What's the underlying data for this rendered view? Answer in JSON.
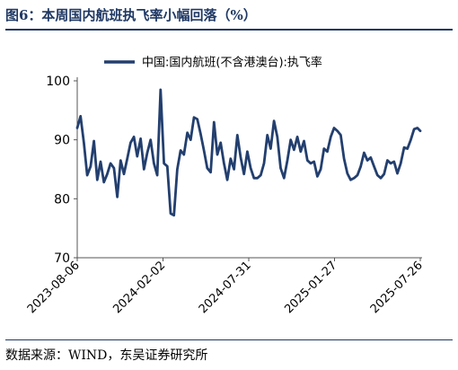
{
  "figure": {
    "title": "图6：本周国内航班执飞率小幅回落（%）",
    "source": "数据来源：WIND，东吴证券研究所"
  },
  "colors": {
    "series": "#233f6e",
    "accent": "#1f3864",
    "axis": "#555555"
  },
  "chart_data": {
    "type": "line",
    "title": "图6：本周国内航班执飞率小幅回落（%）",
    "xlabel": "",
    "ylabel": "",
    "ylim": [
      70,
      100
    ],
    "yticks": [
      70,
      80,
      90,
      100
    ],
    "xlim": [
      "2023-08-06",
      "2025-07-26"
    ],
    "xticks": [
      "2023-08-06",
      "2024-02-02",
      "2024-07-31",
      "2025-01-27",
      "2025-07-26"
    ],
    "grid": false,
    "legend": "top-center",
    "series": [
      {
        "name": "中国:国内航班(不含港澳台):执飞率",
        "x": [
          "2023-08-06",
          "2023-08-13",
          "2023-08-20",
          "2023-08-27",
          "2023-09-03",
          "2023-09-10",
          "2023-09-17",
          "2023-09-24",
          "2023-10-01",
          "2023-10-08",
          "2023-10-15",
          "2023-10-22",
          "2023-10-29",
          "2023-11-05",
          "2023-11-12",
          "2023-11-19",
          "2023-11-26",
          "2023-12-03",
          "2023-12-10",
          "2023-12-17",
          "2023-12-24",
          "2023-12-31",
          "2024-01-07",
          "2024-01-14",
          "2024-01-21",
          "2024-01-28",
          "2024-02-04",
          "2024-02-11",
          "2024-02-18",
          "2024-02-25",
          "2024-03-03",
          "2024-03-10",
          "2024-03-17",
          "2024-03-24",
          "2024-03-31",
          "2024-04-07",
          "2024-04-14",
          "2024-04-21",
          "2024-04-28",
          "2024-05-05",
          "2024-05-12",
          "2024-05-19",
          "2024-05-26",
          "2024-06-02",
          "2024-06-09",
          "2024-06-16",
          "2024-06-23",
          "2024-06-30",
          "2024-07-07",
          "2024-07-14",
          "2024-07-21",
          "2024-07-28",
          "2024-08-04",
          "2024-08-11",
          "2024-08-18",
          "2024-08-25",
          "2024-09-01",
          "2024-09-08",
          "2024-09-15",
          "2024-09-22",
          "2024-09-29",
          "2024-10-06",
          "2024-10-13",
          "2024-10-20",
          "2024-10-27",
          "2024-11-03",
          "2024-11-10",
          "2024-11-17",
          "2024-11-24",
          "2024-12-01",
          "2024-12-08",
          "2024-12-15",
          "2024-12-22",
          "2024-12-29",
          "2025-01-05",
          "2025-01-12",
          "2025-01-19",
          "2025-01-26",
          "2025-02-02",
          "2025-02-09",
          "2025-02-16",
          "2025-02-23",
          "2025-03-02",
          "2025-03-09",
          "2025-03-16",
          "2025-03-23",
          "2025-03-30",
          "2025-04-06",
          "2025-04-13",
          "2025-04-20",
          "2025-04-27",
          "2025-05-04",
          "2025-05-11",
          "2025-05-18",
          "2025-05-25",
          "2025-06-01",
          "2025-06-08",
          "2025-06-15",
          "2025-06-22",
          "2025-06-29",
          "2025-07-06",
          "2025-07-13",
          "2025-07-20",
          "2025-07-26"
        ],
        "values": [
          92.0,
          94.0,
          89.5,
          84.0,
          85.5,
          89.8,
          83.2,
          86.3,
          82.8,
          84.2,
          86.0,
          85.2,
          80.3,
          86.5,
          84.2,
          86.8,
          89.5,
          90.5,
          87.2,
          90.2,
          85.0,
          87.8,
          90.0,
          86.0,
          84.0,
          98.5,
          86.0,
          85.5,
          77.5,
          77.2,
          85.0,
          88.2,
          87.5,
          91.2,
          90.0,
          93.8,
          93.5,
          91.0,
          88.2,
          85.2,
          84.5,
          93.0,
          87.5,
          89.5,
          86.0,
          83.2,
          86.8,
          85.0,
          90.8,
          87.0,
          84.2,
          88.0,
          85.2,
          83.5,
          83.5,
          84.0,
          86.0,
          90.8,
          88.5,
          93.2,
          90.5,
          85.2,
          83.5,
          86.5,
          90.0,
          88.3,
          90.5,
          88.0,
          89.8,
          86.5,
          86.0,
          86.3,
          83.8,
          85.0,
          88.5,
          88.0,
          90.5,
          92.0,
          91.5,
          90.8,
          86.8,
          84.3,
          83.2,
          83.5,
          84.0,
          85.5,
          87.8,
          86.5,
          87.0,
          85.5,
          84.0,
          83.5,
          84.2,
          86.5,
          86.0,
          86.3,
          84.3,
          86.0,
          88.7,
          88.5,
          90.0,
          91.8,
          92.0,
          91.5
        ]
      }
    ]
  }
}
